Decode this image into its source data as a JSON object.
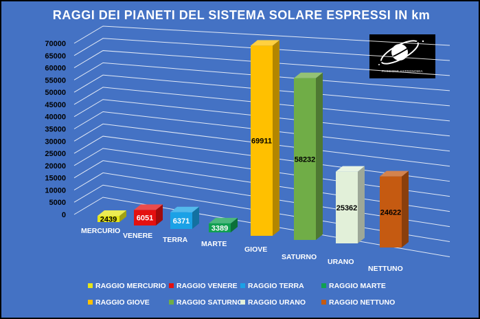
{
  "title": "RAGGI DEI PIANETI DEL SISTEMA SOLARE ESPRESSI IN km",
  "logo": {
    "text": "PASSIONE ASTRONOMIA",
    "icon": "planet-ring-icon"
  },
  "chart_data": {
    "type": "bar",
    "title": "RAGGI DEI PIANETI DEL SISTEMA SOLARE ESPRESSI IN km",
    "categories": [
      "MERCURIO",
      "VENERE",
      "TERRA",
      "MARTE",
      "GIOVE",
      "SATURNO",
      "URANO",
      "NETTUNO"
    ],
    "values": [
      2439,
      6051,
      6371,
      3389,
      69911,
      58232,
      25362,
      24622
    ],
    "value_labels": [
      "2439",
      "6051",
      "6371",
      "3389",
      "69911",
      "58232",
      "25362",
      "24622"
    ],
    "series": [
      {
        "name": "RAGGIO MERCURIO",
        "color": "#E6E61A",
        "label_color": "#000000"
      },
      {
        "name": "RAGGIO VENERE",
        "color": "#E41010",
        "label_color": "#FFFFFF"
      },
      {
        "name": "RAGGIO TERRA",
        "color": "#1BA1E6",
        "label_color": "#FFFFFF"
      },
      {
        "name": "RAGGIO MARTE",
        "color": "#10A050",
        "label_color": "#FFFFFF"
      },
      {
        "name": "RAGGIO GIOVE",
        "color": "#FFC000",
        "label_color": "#000000"
      },
      {
        "name": "RAGGIO SATURNO",
        "color": "#70AD47",
        "label_color": "#000000"
      },
      {
        "name": "RAGGIO URANO",
        "color": "#E2F0D9",
        "label_color": "#000000"
      },
      {
        "name": "RAGGIO NETTUNO",
        "color": "#C55A11",
        "label_color": "#000000"
      }
    ],
    "ylim": [
      0,
      70000
    ],
    "yticks": [
      "0",
      "5000",
      "10000",
      "15000",
      "20000",
      "25000",
      "30000",
      "35000",
      "40000",
      "45000",
      "50000",
      "55000",
      "60000",
      "65000",
      "70000"
    ],
    "grid": true,
    "legend_position": "bottom",
    "xlabel": "",
    "ylabel": ""
  }
}
